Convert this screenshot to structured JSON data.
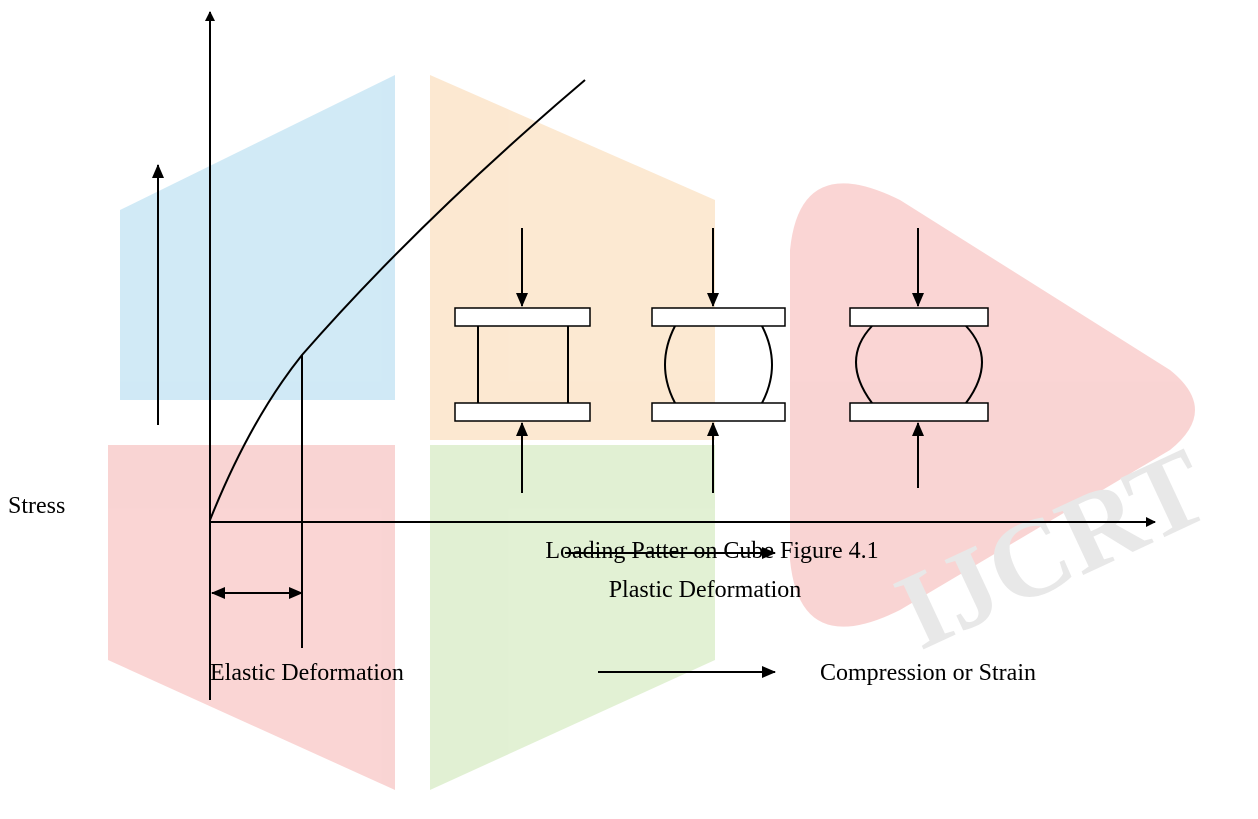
{
  "labels": {
    "y_axis": "Stress",
    "caption": "Loading Patter on Cube Figure 4.1",
    "plastic": "Plastic Deformation",
    "elastic": "Elastic Deformation",
    "x_axis": "Compression or Strain"
  },
  "watermark": "IJCRT"
}
